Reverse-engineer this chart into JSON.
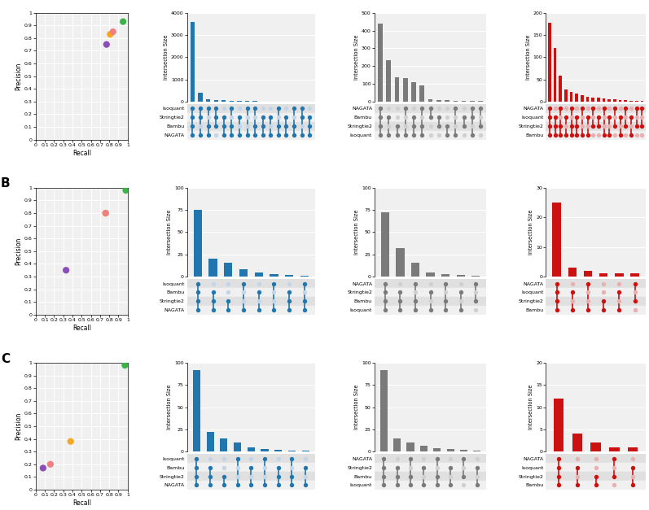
{
  "scatter": {
    "A": {
      "NAGATA": {
        "recall": 0.95,
        "precision": 0.93
      },
      "Stringtie2": {
        "recall": 0.81,
        "precision": 0.83
      },
      "Isoquant": {
        "recall": 0.77,
        "precision": 0.75
      },
      "Bambu": {
        "recall": 0.84,
        "precision": 0.85
      }
    },
    "B": {
      "NAGATA": {
        "recall": 0.98,
        "precision": 0.98
      },
      "Stringtie2": {
        "recall": 0.76,
        "precision": 0.8
      },
      "Isoquant": {
        "recall": 0.33,
        "precision": 0.35
      },
      "Bambu": {
        "recall": 0.76,
        "precision": 0.8
      }
    },
    "C": {
      "NAGATA": {
        "recall": 0.97,
        "precision": 0.98
      },
      "Stringtie2": {
        "recall": 0.38,
        "precision": 0.38
      },
      "Isoquant": {
        "recall": 0.08,
        "precision": 0.17
      },
      "Bambu": {
        "recall": 0.16,
        "precision": 0.2
      }
    }
  },
  "tool_colors": {
    "NAGATA": "#3cb34a",
    "Stringtie2": "#f5a623",
    "Isoquant": "#8b4db8",
    "Bambu": "#f08080"
  },
  "upset_blue": {
    "A": {
      "bars": [
        3600,
        390,
        110,
        70,
        50,
        35,
        28,
        20,
        15,
        12,
        10,
        8,
        6,
        5,
        4,
        3
      ],
      "ylim": 4000,
      "yticks": [
        0,
        1000,
        2000,
        3000,
        4000
      ],
      "rows": [
        "Isoquant",
        "Stringtie2",
        "Bambu",
        "NAGATA"
      ],
      "dot_matrix": [
        [
          1,
          1,
          1,
          1,
          0,
          1,
          0,
          1,
          1,
          0,
          0,
          1,
          0,
          1,
          1,
          0
        ],
        [
          1,
          1,
          0,
          1,
          1,
          0,
          1,
          0,
          0,
          1,
          1,
          0,
          1,
          0,
          1,
          1
        ],
        [
          1,
          0,
          1,
          1,
          1,
          1,
          0,
          0,
          1,
          1,
          0,
          1,
          1,
          1,
          0,
          1
        ],
        [
          1,
          1,
          1,
          0,
          1,
          1,
          1,
          1,
          1,
          1,
          1,
          1,
          1,
          1,
          1,
          1
        ]
      ]
    },
    "B": {
      "bars": [
        75,
        20,
        16,
        8,
        5,
        3,
        2,
        1
      ],
      "ylim": 100,
      "yticks": [
        0,
        25,
        50,
        75,
        100
      ],
      "rows": [
        "Isoquant",
        "Bambu",
        "Stringtie2",
        "NAGATA"
      ],
      "dot_matrix": [
        [
          1,
          0,
          0,
          1,
          0,
          1,
          0,
          1
        ],
        [
          1,
          1,
          0,
          0,
          1,
          0,
          1,
          0
        ],
        [
          1,
          1,
          1,
          0,
          0,
          0,
          1,
          1
        ],
        [
          1,
          1,
          1,
          1,
          1,
          1,
          1,
          1
        ]
      ]
    },
    "C": {
      "bars": [
        92,
        22,
        15,
        10,
        5,
        3,
        2,
        1,
        1
      ],
      "ylim": 100,
      "yticks": [
        0,
        25,
        50,
        75,
        100
      ],
      "rows": [
        "Isoquant",
        "Bambu",
        "Stringtie2",
        "NAGATA"
      ],
      "dot_matrix": [
        [
          1,
          0,
          0,
          1,
          0,
          1,
          0,
          1,
          0
        ],
        [
          1,
          1,
          0,
          0,
          1,
          0,
          1,
          0,
          1
        ],
        [
          1,
          1,
          1,
          0,
          0,
          0,
          1,
          1,
          0
        ],
        [
          1,
          1,
          1,
          1,
          1,
          1,
          1,
          1,
          1
        ]
      ]
    }
  },
  "upset_gray": {
    "A": {
      "bars": [
        440,
        235,
        138,
        130,
        110,
        90,
        15,
        10,
        8,
        5,
        4,
        3,
        2
      ],
      "ylim": 500,
      "yticks": [
        0,
        100,
        200,
        300,
        400,
        500
      ],
      "rows": [
        "NAGATA",
        "Bambu",
        "Stringtie2",
        "Isoquant"
      ],
      "dot_matrix": [
        [
          1,
          0,
          0,
          1,
          0,
          1,
          1,
          0,
          0,
          1,
          0,
          1,
          1
        ],
        [
          1,
          1,
          0,
          0,
          1,
          0,
          1,
          1,
          0,
          0,
          1,
          1,
          0
        ],
        [
          1,
          0,
          1,
          0,
          1,
          1,
          0,
          1,
          1,
          0,
          1,
          0,
          1
        ],
        [
          1,
          1,
          1,
          1,
          1,
          1,
          0,
          0,
          1,
          1,
          0,
          1,
          0
        ]
      ]
    },
    "B": {
      "bars": [
        72,
        32,
        16,
        5,
        3,
        2,
        1
      ],
      "ylim": 100,
      "yticks": [
        0,
        25,
        50,
        75,
        100
      ],
      "rows": [
        "NAGATA",
        "Stringtie2",
        "Bambu",
        "Isoquant"
      ],
      "dot_matrix": [
        [
          1,
          0,
          1,
          0,
          1,
          0,
          1
        ],
        [
          1,
          1,
          0,
          1,
          0,
          1,
          0
        ],
        [
          1,
          1,
          1,
          0,
          1,
          0,
          1
        ],
        [
          1,
          1,
          1,
          1,
          1,
          1,
          0
        ]
      ]
    },
    "C": {
      "bars": [
        92,
        15,
        10,
        7,
        4,
        3,
        2,
        1
      ],
      "ylim": 100,
      "yticks": [
        0,
        25,
        50,
        75,
        100
      ],
      "rows": [
        "NAGATA",
        "Stringtie2",
        "Bambu",
        "Isoquant"
      ],
      "dot_matrix": [
        [
          1,
          0,
          1,
          0,
          1,
          0,
          1,
          0
        ],
        [
          1,
          1,
          0,
          1,
          0,
          1,
          0,
          1
        ],
        [
          1,
          1,
          1,
          0,
          1,
          0,
          1,
          0
        ],
        [
          1,
          1,
          1,
          1,
          1,
          1,
          0,
          1
        ]
      ]
    }
  },
  "upset_red": {
    "A": {
      "bars": [
        178,
        120,
        58,
        28,
        22,
        18,
        14,
        11,
        9,
        8,
        7,
        6,
        5,
        4,
        3,
        2,
        1,
        1
      ],
      "ylim": 200,
      "yticks": [
        0,
        50,
        100,
        150,
        200
      ],
      "rows": [
        "NAGATA",
        "Isoquant",
        "Stringtie2",
        "Bambu"
      ],
      "dot_matrix": [
        [
          1,
          0,
          1,
          0,
          1,
          0,
          1,
          0,
          1,
          0,
          1,
          0,
          1,
          0,
          1,
          0,
          1,
          1
        ],
        [
          1,
          1,
          0,
          1,
          0,
          1,
          0,
          1,
          0,
          1,
          0,
          1,
          0,
          1,
          0,
          1,
          0,
          0
        ],
        [
          1,
          1,
          1,
          0,
          1,
          1,
          0,
          0,
          1,
          1,
          0,
          0,
          1,
          0,
          1,
          0,
          1,
          1
        ],
        [
          1,
          1,
          1,
          1,
          1,
          1,
          1,
          1,
          0,
          0,
          1,
          1,
          0,
          1,
          0,
          1,
          0,
          0
        ]
      ]
    },
    "B": {
      "bars": [
        25,
        3,
        2,
        1,
        1,
        1
      ],
      "ylim": 30,
      "yticks": [
        0,
        10,
        20,
        30
      ],
      "rows": [
        "NAGATA",
        "Isoquant",
        "Stringtie2",
        "Bambu"
      ],
      "dot_matrix": [
        [
          1,
          0,
          1,
          0,
          0,
          1
        ],
        [
          1,
          1,
          0,
          0,
          1,
          0
        ],
        [
          1,
          0,
          0,
          1,
          0,
          1
        ],
        [
          1,
          1,
          1,
          1,
          1,
          0
        ]
      ]
    },
    "C": {
      "bars": [
        12,
        4,
        2,
        1,
        1
      ],
      "ylim": 20,
      "yticks": [
        0,
        5,
        10,
        15,
        20
      ],
      "rows": [
        "NAGATA",
        "Isoquant",
        "Stringtie2",
        "Bambu"
      ],
      "dot_matrix": [
        [
          1,
          0,
          0,
          1,
          0
        ],
        [
          1,
          1,
          0,
          0,
          1
        ],
        [
          1,
          0,
          1,
          1,
          0
        ],
        [
          1,
          1,
          1,
          0,
          1
        ]
      ]
    }
  },
  "bg_color": "#f0f0f0",
  "dot_active_blue": "#2176ae",
  "dot_inactive_blue": "#c5d5e8",
  "dot_active_gray": "#7a7a7a",
  "dot_inactive_gray": "#d0d0d0",
  "dot_active_red": "#cc1111",
  "dot_inactive_red": "#e8b0b0",
  "row_stripe_dark": "#e0e0e0",
  "row_stripe_light": "#f0f0f0"
}
